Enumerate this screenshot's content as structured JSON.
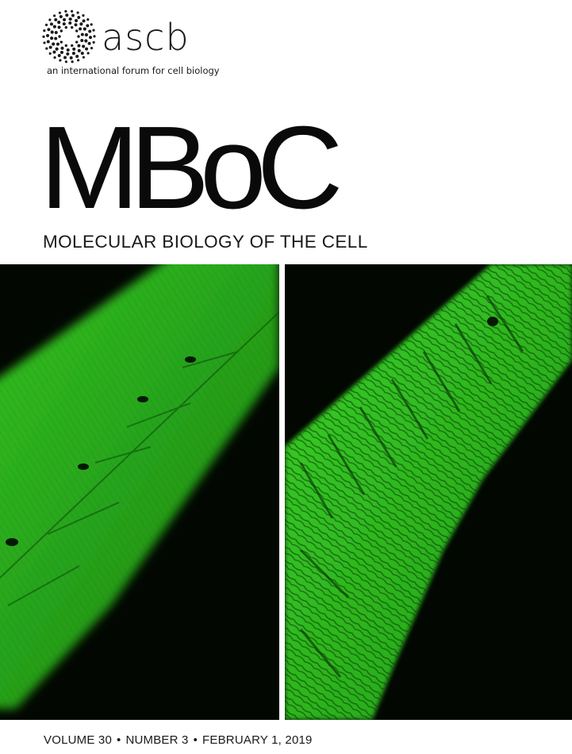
{
  "publisher": {
    "logo_text": "ascb",
    "tagline": "an international forum for cell biology"
  },
  "journal": {
    "abbrev": "MBoC",
    "full_title": "MOLECULAR BIOLOGY OF THE CELL"
  },
  "issue": {
    "volume": "VOLUME 30",
    "number": "NUMBER 3",
    "date": "FEBRUARY 1, 2019",
    "separator": "•"
  },
  "colors": {
    "fluorescence": "#2fae1f",
    "background": "#020702"
  },
  "images": {
    "left": "green-fluorescent-muscle-fibers-ordered",
    "right": "green-fluorescent-muscle-fibers-disorganized"
  }
}
